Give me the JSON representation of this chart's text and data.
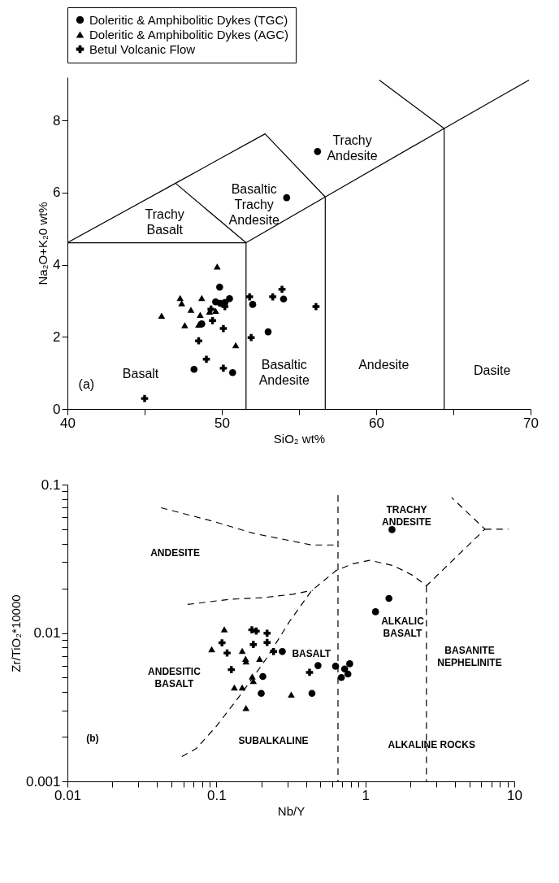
{
  "chart_data": [
    {
      "type": "scatter",
      "xlabel": "SiO₂ wt%",
      "ylabel": "Na₂O+K₂0 wt%",
      "xlim": [
        40,
        70
      ],
      "ylim": [
        0,
        9.2
      ],
      "xticks": [
        40,
        {
          "value": 45,
          "label": null
        },
        50,
        {
          "value": 55,
          "label": null
        },
        60,
        {
          "value": 65,
          "label": null
        },
        70
      ],
      "yticks": [
        0,
        2,
        4,
        6,
        8
      ],
      "legend": "top",
      "grid": false,
      "series": [
        {
          "name": "Doleritic & Amphibolitic Dykes (TGC)",
          "color": "#000000",
          "marker": "circle",
          "x": [
            49.86,
            49.6,
            49.9,
            50.2,
            50.5,
            48.7,
            48.2,
            50.7,
            52.0,
            53.0,
            54.0,
            54.2,
            56.2
          ],
          "values": [
            3.38,
            2.97,
            2.93,
            2.95,
            3.06,
            2.36,
            1.1,
            1.01,
            2.9,
            2.14,
            3.05,
            5.86,
            7.14
          ]
        },
        {
          "name": "Doleritic & Amphibolitic Dykes (AGC)",
          "color": "#000000",
          "marker": "triangle",
          "x": [
            49.7,
            46.1,
            47.3,
            47.4,
            48.0,
            48.7,
            47.6,
            48.6,
            48.5,
            49.2,
            49.6,
            50.9
          ],
          "values": [
            3.95,
            2.59,
            3.08,
            2.93,
            2.75,
            3.08,
            2.32,
            2.61,
            2.34,
            2.7,
            2.72,
            1.77
          ]
        },
        {
          "name": "Betul Volcanic Flow",
          "color": "#000000",
          "marker": "cross",
          "x": [
            45.0,
            48.5,
            49.0,
            49.4,
            49.3,
            50.1,
            50.1,
            50.2,
            51.8,
            51.9,
            53.3,
            53.9,
            56.1
          ],
          "values": [
            0.29,
            1.89,
            1.38,
            2.45,
            2.77,
            2.23,
            1.13,
            2.84,
            3.11,
            1.98,
            3.11,
            3.32,
            2.84
          ]
        },
        {
          "type": "line",
          "color": "#000000",
          "line_style": "solid",
          "x": [
            40,
            51.57,
            51.57
          ],
          "values": [
            4.61,
            4.61,
            0
          ]
        },
        {
          "type": "line",
          "color": "#000000",
          "line_style": "solid",
          "x": [
            40,
            47.0,
            52.8,
            56.7
          ],
          "values": [
            4.61,
            6.26,
            7.63,
            5.88
          ]
        },
        {
          "type": "line",
          "color": "#000000",
          "line_style": "solid",
          "x": [
            47.0,
            51.57,
            56.7,
            64.4,
            69.9
          ],
          "values": [
            6.26,
            4.61,
            5.88,
            7.78,
            9.12
          ]
        },
        {
          "type": "line",
          "color": "#000000",
          "line_style": "solid",
          "x": [
            56.7,
            56.7
          ],
          "values": [
            5.88,
            0
          ]
        },
        {
          "type": "line",
          "color": "#000000",
          "line_style": "solid",
          "x": [
            60.2,
            64.4,
            64.4
          ],
          "values": [
            9.12,
            7.78,
            0
          ]
        }
      ],
      "annotations": [
        "Trachy\nBasalt",
        "Basaltic\nTrachy\nAndesite",
        "Trachy\nAndesite",
        "Basalt",
        "Basaltic\nAndesite",
        "Andesite",
        "Dasite",
        "(a)"
      ]
    },
    {
      "type": "scatter",
      "xlabel": "Nb/Y",
      "ylabel": "Zr/TiO₂*10000",
      "log": "xy",
      "xlim": [
        0.01,
        10
      ],
      "ylim": [
        0.001,
        0.1
      ],
      "xticks": [
        0.01,
        {
          "value": 0.02,
          "label": null
        },
        {
          "value": 0.03,
          "label": null
        },
        {
          "value": 0.04,
          "label": null
        },
        {
          "value": 0.05,
          "label": null
        },
        {
          "value": 0.06,
          "label": null
        },
        {
          "value": 0.07,
          "label": null
        },
        {
          "value": 0.08,
          "label": null
        },
        {
          "value": 0.09,
          "label": null
        },
        0.1,
        {
          "value": 0.2,
          "label": null
        },
        {
          "value": 0.3,
          "label": null
        },
        {
          "value": 0.4,
          "label": null
        },
        {
          "value": 0.5,
          "label": null
        },
        {
          "value": 0.6,
          "label": null
        },
        {
          "value": 0.7,
          "label": null
        },
        {
          "value": 0.8,
          "label": null
        },
        {
          "value": 0.9,
          "label": null
        },
        1,
        {
          "value": 2,
          "label": null
        },
        {
          "value": 3,
          "label": null
        },
        {
          "value": 4,
          "label": null
        },
        {
          "value": 5,
          "label": null
        },
        {
          "value": 6,
          "label": null
        },
        {
          "value": 7,
          "label": null
        },
        {
          "value": 8,
          "label": null
        },
        {
          "value": 9,
          "label": null
        },
        10
      ],
      "yticks": [
        0.001,
        {
          "value": 0.002,
          "label": null
        },
        {
          "value": 0.003,
          "label": null
        },
        {
          "value": 0.004,
          "label": null
        },
        {
          "value": 0.005,
          "label": null
        },
        {
          "value": 0.006,
          "label": null
        },
        {
          "value": 0.007,
          "label": null
        },
        {
          "value": 0.008,
          "label": null
        },
        {
          "value": 0.009,
          "label": null
        },
        0.01,
        {
          "value": 0.02,
          "label": null
        },
        {
          "value": 0.03,
          "label": null
        },
        {
          "value": 0.04,
          "label": null
        },
        {
          "value": 0.05,
          "label": null
        },
        {
          "value": 0.06,
          "label": null
        },
        {
          "value": 0.07,
          "label": null
        },
        {
          "value": 0.08,
          "label": null
        },
        {
          "value": 0.09,
          "label": null
        },
        0.1
      ],
      "grid": false,
      "series": [
        {
          "color": "#000000",
          "marker": "circle",
          "x": [
            1.51,
            1.44,
            1.17,
            0.277,
            0.481,
            0.205,
            0.2,
            0.438,
            0.631,
            0.785,
            0.726,
            0.764,
            0.69
          ],
          "values": [
            0.0497,
            0.0171,
            0.0139,
            0.0075,
            0.00603,
            0.00509,
            0.00392,
            0.00392,
            0.00597,
            0.0062,
            0.00572,
            0.00529,
            0.00501
          ]
        },
        {
          "color": "#000000",
          "marker": "triangle",
          "x": [
            0.113,
            0.093,
            0.149,
            0.157,
            0.158,
            0.195,
            0.174,
            0.177,
            0.132,
            0.149,
            0.158,
            0.318
          ],
          "values": [
            0.0106,
            0.00776,
            0.00757,
            0.0067,
            0.00643,
            0.0067,
            0.00509,
            0.00475,
            0.00429,
            0.00429,
            0.00312,
            0.00385
          ]
        },
        {
          "color": "#000000",
          "marker": "cross",
          "x": [
            0.173,
            0.185,
            0.219,
            0.109,
            0.219,
            0.177,
            0.118,
            0.242,
            0.126,
            0.422
          ],
          "values": [
            0.0105,
            0.0103,
            0.00996,
            0.00859,
            0.00863,
            0.00836,
            0.00733,
            0.0075,
            0.00566,
            0.00543
          ]
        },
        {
          "type": "line",
          "color": "#000000",
          "line_style": "dashed",
          "x": [
            0.0425,
            0.0944,
            0.175,
            0.294,
            0.434,
            0.655
          ],
          "values": [
            0.0698,
            0.0567,
            0.0471,
            0.0424,
            0.0392,
            0.0392
          ]
        },
        {
          "type": "line",
          "color": "#000000",
          "line_style": "dashed",
          "x": [
            0.0641,
            0.122,
            0.205,
            0.326,
            0.444
          ],
          "values": [
            0.01556,
            0.01686,
            0.0173,
            0.01824,
            0.0194
          ]
        },
        {
          "type": "line",
          "color": "#000000",
          "line_style": "dashed",
          "x": [
            0.0587,
            0.073,
            0.0995,
            0.143,
            0.216,
            0.31,
            0.434,
            0.638,
            0.826,
            1.07,
            1.53,
            2.09,
            2.57,
            6.35,
            3.79
          ],
          "values": [
            0.00147,
            0.00166,
            0.00234,
            0.00375,
            0.0067,
            0.01197,
            0.0192,
            0.0264,
            0.0293,
            0.0309,
            0.0285,
            0.0244,
            0.0208,
            0.0501,
            0.0818
          ]
        },
        {
          "type": "line",
          "color": "#000000",
          "line_style": "dashed",
          "x": [
            6.35,
            9.12
          ],
          "values": [
            0.0501,
            0.0501
          ]
        },
        {
          "type": "line",
          "color": "#000000",
          "line_style": "dashed",
          "x": [
            0.655,
            0.655
          ],
          "values": [
            0.0849,
            0.001
          ]
        },
        {
          "type": "line",
          "color": "#000000",
          "line_style": "dashed",
          "x": [
            2.57,
            2.57
          ],
          "values": [
            0.0208,
            0.001
          ]
        }
      ],
      "annotations": [
        "ANDESITE",
        "TRACHY\nANDESITE",
        "ALKALIC\nBASALT",
        "BASANITE\nNEPHELINITE",
        "ANDESITIC\nBASALT",
        "BASALT",
        "SUBALKALINE",
        "ALKALINE ROCKS",
        "(b)"
      ]
    }
  ]
}
